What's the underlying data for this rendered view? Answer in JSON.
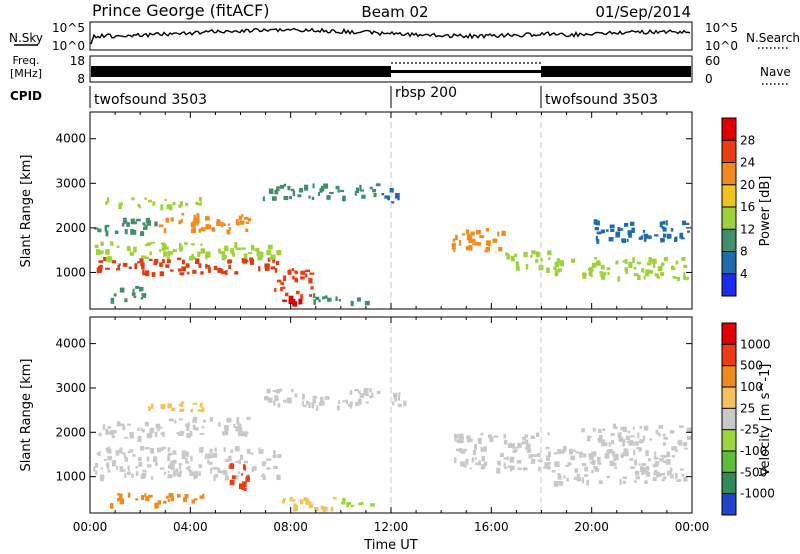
{
  "header": {
    "station": "Prince George (fitACF)",
    "beam": "Beam 02",
    "date": "01/Sep/2014"
  },
  "strip_labels": {
    "nsky": "N.Sky",
    "nsearch": "N.Search",
    "freq_line1": "Freq.",
    "freq_line2": "[MHz]",
    "nave": "Nave",
    "cpid": "CPID"
  },
  "chart_data": [
    {
      "type": "line",
      "name": "noise",
      "left_ticks": [
        "10^5",
        "10^0"
      ],
      "right_ticks": [
        "10^5",
        "10^0"
      ],
      "x_range_hours": [
        0,
        24
      ]
    },
    {
      "type": "bar",
      "name": "frequency-nave",
      "left_ticks": [
        "18",
        "8"
      ],
      "right_ticks": [
        "60",
        "0"
      ],
      "x_range_hours": [
        0,
        24
      ]
    },
    {
      "type": "table",
      "name": "cpid",
      "segments": [
        {
          "label": "twofsound 3503",
          "start_hour": 0,
          "end_hour": 12
        },
        {
          "label": "rbsp 200",
          "start_hour": 12,
          "end_hour": 18
        },
        {
          "label": "twofsound 3503",
          "start_hour": 18,
          "end_hour": 24
        }
      ]
    },
    {
      "type": "heatmap",
      "name": "power",
      "ylabel": "Slant Range [km]",
      "yticks": [
        1000,
        2000,
        3000,
        4000
      ],
      "ylim": [
        180,
        4600
      ],
      "colorbar_label": "Power [dB]",
      "colorbar_ticks": [
        4,
        8,
        12,
        16,
        20,
        24,
        28
      ],
      "colorbar_colors": [
        "#1c2bf0",
        "#1f6bb0",
        "#3f8f6a",
        "#9ed23a",
        "#f2c21d",
        "#f28a1d",
        "#ee3b12",
        "#e00000"
      ],
      "bands": [
        {
          "h0": 0.1,
          "h1": 7.5,
          "r0": 1000,
          "r1": 1350,
          "c": "#e03a10"
        },
        {
          "h0": 0.1,
          "h1": 7.5,
          "r0": 1350,
          "r1": 1700,
          "c": "#9ed23a"
        },
        {
          "h0": 0.1,
          "h1": 2.6,
          "r0": 1900,
          "r1": 2250,
          "c": "#3f8f6a"
        },
        {
          "h0": 2.6,
          "h1": 6.3,
          "r0": 1950,
          "r1": 2350,
          "c": "#f28a1d"
        },
        {
          "h0": 0.5,
          "h1": 4.5,
          "r0": 2500,
          "r1": 2700,
          "c": "#9ed23a"
        },
        {
          "h0": 7.3,
          "h1": 8.8,
          "r0": 350,
          "r1": 500,
          "c": "#e00000"
        },
        {
          "h0": 7.3,
          "h1": 8.8,
          "r0": 500,
          "r1": 1100,
          "c": "#ee3b12"
        },
        {
          "h0": 8.8,
          "h1": 11.0,
          "r0": 350,
          "r1": 550,
          "c": "#3f8f6a"
        },
        {
          "h0": 6.8,
          "h1": 11.5,
          "r0": 2700,
          "r1": 3000,
          "c": "#3f8f6a"
        },
        {
          "h0": 11.5,
          "h1": 12.5,
          "r0": 2600,
          "r1": 2900,
          "c": "#1f6bb0"
        },
        {
          "h0": 14.3,
          "h1": 16.5,
          "r0": 1500,
          "r1": 2000,
          "c": "#f28a1d"
        },
        {
          "h0": 16.5,
          "h1": 18.3,
          "r0": 1100,
          "r1": 1500,
          "c": "#9ed23a"
        },
        {
          "h0": 18.3,
          "h1": 23.8,
          "r0": 900,
          "r1": 1350,
          "c": "#9ed23a"
        },
        {
          "h0": 20.0,
          "h1": 23.8,
          "r0": 1750,
          "r1": 2200,
          "c": "#1f6bb0"
        },
        {
          "h0": 0.8,
          "h1": 2.2,
          "r0": 400,
          "r1": 700,
          "c": "#3f8f6a"
        }
      ]
    },
    {
      "type": "heatmap",
      "name": "velocity",
      "xlabel": "Time UT",
      "ylabel": "Slant Range [km]",
      "xticks": [
        "00:00",
        "04:00",
        "08:00",
        "12:00",
        "16:00",
        "20:00",
        "00:00"
      ],
      "yticks": [
        1000,
        2000,
        3000,
        4000
      ],
      "ylim": [
        180,
        4600
      ],
      "colorbar_label": "Velocity [m s^-1]",
      "colorbar_ticks": [
        "1000",
        "500",
        "100",
        "25",
        "-25",
        "-100",
        "-500",
        "-1000"
      ],
      "colorbar_colors": [
        "#2244cc",
        "#2f8a5a",
        "#5bbf3a",
        "#9ad83a",
        "#c8c8c8",
        "#f5c15a",
        "#f28a1d",
        "#ee3b12",
        "#e00000"
      ],
      "bands": [
        {
          "h0": 0.1,
          "h1": 7.5,
          "r0": 1000,
          "r1": 1700,
          "c": "#c8c8c8"
        },
        {
          "h0": 0.1,
          "h1": 2.6,
          "r0": 1900,
          "r1": 2250,
          "c": "#c8c8c8"
        },
        {
          "h0": 2.6,
          "h1": 6.3,
          "r0": 1950,
          "r1": 2350,
          "c": "#c8c8c8"
        },
        {
          "h0": 2.0,
          "h1": 4.5,
          "r0": 2500,
          "r1": 2700,
          "c": "#f5c15a"
        },
        {
          "h0": 5.5,
          "h1": 6.3,
          "r0": 700,
          "r1": 1300,
          "c": "#ee3b12"
        },
        {
          "h0": 0.6,
          "h1": 4.5,
          "r0": 400,
          "r1": 650,
          "c": "#f28a1d"
        },
        {
          "h0": 7.3,
          "h1": 10.0,
          "r0": 300,
          "r1": 550,
          "c": "#f5c15a"
        },
        {
          "h0": 10.0,
          "h1": 11.5,
          "r0": 350,
          "r1": 550,
          "c": "#9ad83a"
        },
        {
          "h0": 6.8,
          "h1": 11.5,
          "r0": 2600,
          "r1": 3000,
          "c": "#c8c8c8"
        },
        {
          "h0": 11.5,
          "h1": 12.5,
          "r0": 2600,
          "r1": 2900,
          "c": "#c8c8c8"
        },
        {
          "h0": 14.3,
          "h1": 18.3,
          "r0": 1200,
          "r1": 2000,
          "c": "#c8c8c8"
        },
        {
          "h0": 18.3,
          "h1": 23.8,
          "r0": 900,
          "r1": 1700,
          "c": "#c8c8c8"
        },
        {
          "h0": 19.5,
          "h1": 23.8,
          "r0": 1750,
          "r1": 2200,
          "c": "#c8c8c8"
        }
      ]
    }
  ]
}
